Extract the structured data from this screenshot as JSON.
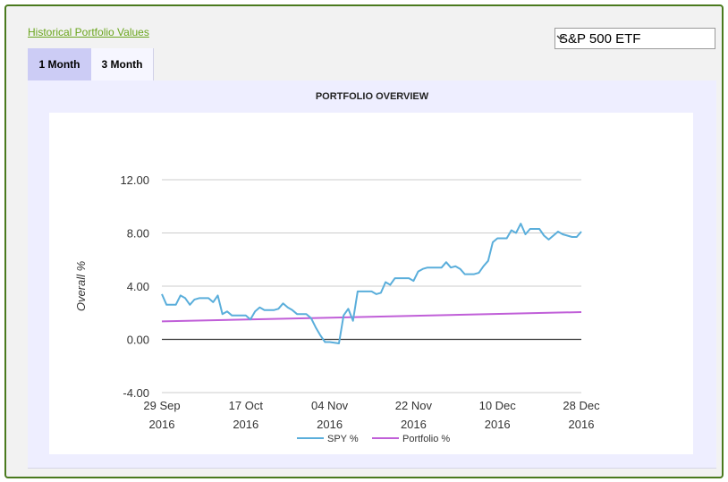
{
  "header": {
    "link_label": "Historical Portfolio Values",
    "select_value": "S&P 500 ETF"
  },
  "tabs": [
    {
      "label": "1 Month",
      "active": true
    },
    {
      "label": "3 Month",
      "active": false
    }
  ],
  "colors": {
    "spy": "#5aaedb",
    "portfolio": "#c05fd8",
    "frame": "#4a7a1e",
    "link": "#6aa51d"
  },
  "chart_data": {
    "type": "line",
    "title": "PORTFOLIO OVERVIEW",
    "ylabel": "Overall %",
    "xlabel": "",
    "ylim": [
      -4,
      12
    ],
    "y_ticks": [
      "12.00",
      "8.00",
      "4.00",
      "0.00",
      "-4.00"
    ],
    "y_tick_values": [
      12,
      8,
      4,
      0,
      -4
    ],
    "x_ticks": [
      {
        "date": "2016-09-29",
        "line1": "29 Sep",
        "line2": "2016"
      },
      {
        "date": "2016-10-17",
        "line1": "17 Oct",
        "line2": "2016"
      },
      {
        "date": "2016-11-04",
        "line1": "04 Nov",
        "line2": "2016"
      },
      {
        "date": "2016-11-22",
        "line1": "22 Nov",
        "line2": "2016"
      },
      {
        "date": "2016-12-10",
        "line1": "10 Dec",
        "line2": "2016"
      },
      {
        "date": "2016-12-28",
        "line1": "28 Dec",
        "line2": "2016"
      }
    ],
    "x_range": [
      "2016-09-29",
      "2016-12-28"
    ],
    "grid": true,
    "legend_position": "bottom",
    "series": [
      {
        "name": "SPY %",
        "points": [
          [
            "2016-09-29",
            3.4
          ],
          [
            "2016-09-30",
            2.6
          ],
          [
            "2016-10-02",
            2.6
          ],
          [
            "2016-10-03",
            3.3
          ],
          [
            "2016-10-04",
            3.1
          ],
          [
            "2016-10-05",
            2.6
          ],
          [
            "2016-10-06",
            3.0
          ],
          [
            "2016-10-07",
            3.1
          ],
          [
            "2016-10-09",
            3.1
          ],
          [
            "2016-10-10",
            2.8
          ],
          [
            "2016-10-11",
            3.3
          ],
          [
            "2016-10-12",
            1.9
          ],
          [
            "2016-10-13",
            2.1
          ],
          [
            "2016-10-14",
            1.8
          ],
          [
            "2016-10-16",
            1.8
          ],
          [
            "2016-10-17",
            1.8
          ],
          [
            "2016-10-18",
            1.5
          ],
          [
            "2016-10-19",
            2.1
          ],
          [
            "2016-10-20",
            2.4
          ],
          [
            "2016-10-21",
            2.2
          ],
          [
            "2016-10-23",
            2.2
          ],
          [
            "2016-10-24",
            2.3
          ],
          [
            "2016-10-25",
            2.7
          ],
          [
            "2016-10-26",
            2.4
          ],
          [
            "2016-10-27",
            2.2
          ],
          [
            "2016-10-28",
            1.9
          ],
          [
            "2016-10-30",
            1.9
          ],
          [
            "2016-10-31",
            1.6
          ],
          [
            "2016-11-01",
            0.9
          ],
          [
            "2016-11-02",
            0.3
          ],
          [
            "2016-11-03",
            -0.2
          ],
          [
            "2016-11-04",
            -0.2
          ],
          [
            "2016-11-06",
            -0.3
          ],
          [
            "2016-11-07",
            1.8
          ],
          [
            "2016-11-08",
            2.3
          ],
          [
            "2016-11-09",
            1.4
          ],
          [
            "2016-11-10",
            3.6
          ],
          [
            "2016-11-11",
            3.6
          ],
          [
            "2016-11-13",
            3.6
          ],
          [
            "2016-11-14",
            3.4
          ],
          [
            "2016-11-15",
            3.5
          ],
          [
            "2016-11-16",
            4.3
          ],
          [
            "2016-11-17",
            4.1
          ],
          [
            "2016-11-18",
            4.6
          ],
          [
            "2016-11-20",
            4.6
          ],
          [
            "2016-11-21",
            4.6
          ],
          [
            "2016-11-22",
            4.4
          ],
          [
            "2016-11-23",
            5.1
          ],
          [
            "2016-11-24",
            5.3
          ],
          [
            "2016-11-25",
            5.4
          ],
          [
            "2016-11-27",
            5.4
          ],
          [
            "2016-11-28",
            5.4
          ],
          [
            "2016-11-29",
            5.8
          ],
          [
            "2016-11-30",
            5.4
          ],
          [
            "2016-12-01",
            5.5
          ],
          [
            "2016-12-02",
            5.3
          ],
          [
            "2016-12-03",
            4.9
          ],
          [
            "2016-12-05",
            4.9
          ],
          [
            "2016-12-06",
            5.0
          ],
          [
            "2016-12-07",
            5.5
          ],
          [
            "2016-12-08",
            5.9
          ],
          [
            "2016-12-09",
            7.3
          ],
          [
            "2016-12-10",
            7.6
          ],
          [
            "2016-12-12",
            7.6
          ],
          [
            "2016-12-13",
            8.2
          ],
          [
            "2016-12-14",
            8.0
          ],
          [
            "2016-12-15",
            8.7
          ],
          [
            "2016-12-16",
            7.9
          ],
          [
            "2016-12-17",
            8.3
          ],
          [
            "2016-12-19",
            8.3
          ],
          [
            "2016-12-20",
            7.8
          ],
          [
            "2016-12-21",
            7.5
          ],
          [
            "2016-12-22",
            7.8
          ],
          [
            "2016-12-23",
            8.1
          ],
          [
            "2016-12-24",
            7.9
          ],
          [
            "2016-12-26",
            7.7
          ],
          [
            "2016-12-27",
            7.7
          ],
          [
            "2016-12-28",
            8.1
          ]
        ]
      },
      {
        "name": "Portfolio %",
        "points": [
          [
            "2016-09-29",
            1.35
          ],
          [
            "2016-12-28",
            2.05
          ]
        ]
      }
    ]
  }
}
